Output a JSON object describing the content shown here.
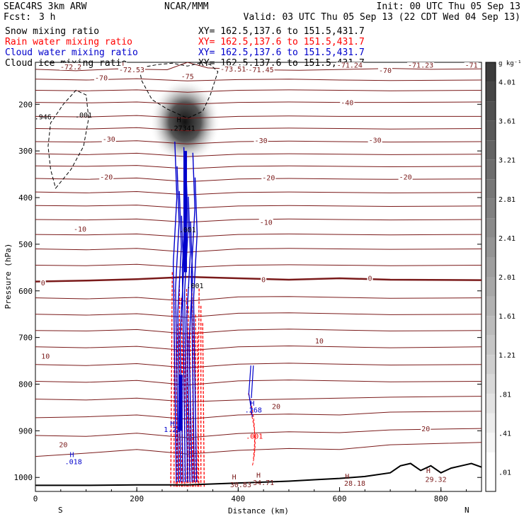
{
  "header": {
    "model": "SEAC4RS  3km ARW",
    "org": "NCAR/MMM",
    "init": "Init: 00 UTC Thu 05 Sep 13",
    "fcst_label": "Fcst:",
    "fcst_value": "3 h",
    "valid": "Valid: 03 UTC Thu 05 Sep 13 (22 CDT Wed 04 Sep 13)"
  },
  "colors": {
    "snow": "#000000",
    "rain": "#ff0000",
    "cloud_water": "#0000cc",
    "cloud_ice": "#000000",
    "temperature": "#7a1a1a",
    "terrain": "#000000"
  },
  "chart_data": {
    "type": "line",
    "ylabel": "Pressure (hPa)",
    "xlabel": "Distance (km)",
    "xlim": [
      0,
      880
    ],
    "ylim": [
      1030,
      110
    ],
    "yscale": "linear-inverted",
    "x_ticks": [
      "0",
      "200",
      "400",
      "600",
      "800"
    ],
    "y_ticks": [
      "200",
      "300",
      "400",
      "500",
      "600",
      "700",
      "800",
      "900",
      "1000"
    ],
    "x_end_labels": {
      "left": "S",
      "right": "N"
    },
    "legend": [
      {
        "name": "Snow mixing ratio",
        "xy": "XY=  162.5,137.6 to 151.5,431.7",
        "color": "#000000"
      },
      {
        "name": "Rain water mixing ratio",
        "xy": "XY=  162.5,137.6 to 151.5,431.7",
        "color": "#ff0000"
      },
      {
        "name": "Cloud water mixing ratio",
        "xy": "XY=  162.5,137.6 to 151.5,431.7",
        "color": "#0000cc"
      },
      {
        "name": "Cloud ice mixing ratio",
        "xy": "XY=  162.5,137.6 to 151.5,431.7",
        "color": "#000000"
      }
    ],
    "colorbar": {
      "unit": "g kg⁻¹",
      "levels": [
        "4.01",
        "3.61",
        "3.21",
        "2.81",
        "2.41",
        "2.01",
        "1.61",
        "1.21",
        ".81",
        ".41",
        ".01"
      ]
    },
    "temperature_isotherms": [
      {
        "x": [
          0,
          80,
          160,
          260,
          300,
          340,
          420,
          520,
          620,
          700,
          780,
          880
        ],
        "p": [
          125,
          128,
          124,
          126,
          110,
          122,
          126,
          127,
          125,
          123,
          125,
          124
        ]
      },
      {
        "x": [
          0,
          100,
          200,
          300,
          400,
          500,
          600,
          700,
          880
        ],
        "p": [
          146,
          148,
          145,
          150,
          147,
          146,
          148,
          149,
          148
        ]
      },
      {
        "x": [
          0,
          100,
          200,
          300,
          400,
          500,
          600,
          700,
          880
        ],
        "p": [
          170,
          171,
          169,
          174,
          170,
          169,
          170,
          171,
          170
        ]
      },
      {
        "x": [
          0,
          100,
          200,
          300,
          400,
          500,
          600,
          700,
          880
        ],
        "p": [
          196,
          197,
          195,
          200,
          196,
          195,
          196,
          196,
          195
        ]
      },
      {
        "x": [
          0,
          100,
          200,
          300,
          400,
          500,
          600,
          700,
          880
        ],
        "p": [
          226,
          227,
          224,
          230,
          226,
          225,
          226,
          226,
          226
        ]
      },
      {
        "x": [
          0,
          100,
          200,
          300,
          400,
          500,
          600,
          700,
          880
        ],
        "p": [
          252,
          253,
          250,
          257,
          252,
          251,
          252,
          253,
          252
        ]
      },
      {
        "x": [
          0,
          100,
          200,
          300,
          400,
          500,
          600,
          700,
          880
        ],
        "p": [
          280,
          281,
          278,
          285,
          280,
          279,
          280,
          281,
          280
        ]
      },
      {
        "x": [
          0,
          100,
          200,
          300,
          400,
          500,
          600,
          700,
          880
        ],
        "p": [
          306,
          308,
          305,
          312,
          307,
          306,
          307,
          308,
          307
        ]
      },
      {
        "x": [
          0,
          100,
          200,
          300,
          400,
          500,
          600,
          700,
          880
        ],
        "p": [
          332,
          333,
          331,
          338,
          333,
          332,
          333,
          334,
          333
        ]
      },
      {
        "x": [
          0,
          100,
          200,
          300,
          400,
          500,
          600,
          700,
          880
        ],
        "p": [
          359,
          361,
          358,
          366,
          360,
          359,
          360,
          361,
          360
        ]
      },
      {
        "x": [
          0,
          100,
          200,
          300,
          400,
          500,
          600,
          700,
          880
        ],
        "p": [
          388,
          390,
          387,
          394,
          389,
          388,
          389,
          390,
          389
        ]
      },
      {
        "x": [
          0,
          100,
          200,
          300,
          400,
          500,
          600,
          700,
          880
        ],
        "p": [
          417,
          418,
          416,
          423,
          418,
          417,
          418,
          419,
          418
        ]
      },
      {
        "x": [
          0,
          100,
          200,
          300,
          400,
          500,
          600,
          700,
          880
        ],
        "p": [
          447,
          448,
          446,
          453,
          447,
          446,
          447,
          448,
          447
        ]
      },
      {
        "x": [
          0,
          100,
          200,
          300,
          400,
          500,
          600,
          700,
          880
        ],
        "p": [
          479,
          480,
          478,
          485,
          479,
          478,
          479,
          480,
          479
        ]
      },
      {
        "x": [
          0,
          100,
          200,
          300,
          400,
          500,
          600,
          700,
          880
        ],
        "p": [
          510,
          512,
          509,
          517,
          510,
          509,
          510,
          511,
          510
        ]
      },
      {
        "x": [
          0,
          100,
          200,
          300,
          400,
          500,
          600,
          700,
          880
        ],
        "p": [
          545,
          546,
          543,
          550,
          545,
          544,
          545,
          546,
          545
        ]
      },
      {
        "x": [
          0,
          100,
          200,
          300,
          400,
          500,
          600,
          700,
          880
        ],
        "p": [
          580,
          578,
          575,
          570,
          573,
          576,
          573,
          576,
          577
        ]
      },
      {
        "x": [
          0,
          100,
          200,
          300,
          400,
          500,
          600,
          700,
          880
        ],
        "p": [
          615,
          617,
          614,
          622,
          613,
          612,
          614,
          616,
          615
        ]
      },
      {
        "x": [
          0,
          100,
          200,
          300,
          400,
          500,
          600,
          700,
          880
        ],
        "p": [
          650,
          652,
          649,
          657,
          648,
          647,
          649,
          651,
          650
        ]
      },
      {
        "x": [
          0,
          100,
          200,
          300,
          400,
          500,
          600,
          700,
          880
        ],
        "p": [
          685,
          686,
          683,
          692,
          684,
          682,
          684,
          686,
          685
        ]
      },
      {
        "x": [
          0,
          100,
          200,
          300,
          400,
          500,
          600,
          700,
          880
        ],
        "p": [
          720,
          722,
          719,
          728,
          720,
          718,
          720,
          722,
          720
        ]
      },
      {
        "x": [
          0,
          100,
          200,
          300,
          400,
          500,
          600,
          700,
          880
        ],
        "p": [
          758,
          760,
          756,
          765,
          757,
          755,
          757,
          759,
          758
        ]
      },
      {
        "x": [
          0,
          100,
          200,
          300,
          400,
          500,
          600,
          700,
          880
        ],
        "p": [
          794,
          796,
          792,
          802,
          793,
          791,
          793,
          795,
          794
        ]
      },
      {
        "x": [
          0,
          100,
          200,
          300,
          400,
          500,
          600,
          700,
          880
        ],
        "p": [
          832,
          834,
          830,
          838,
          834,
          832,
          830,
          828,
          826
        ]
      },
      {
        "x": [
          0,
          100,
          200,
          300,
          400,
          500,
          600,
          700,
          880
        ],
        "p": [
          872,
          870,
          866,
          875,
          866,
          864,
          866,
          860,
          858
        ]
      },
      {
        "x": [
          0,
          100,
          200,
          300,
          400,
          500,
          600,
          700,
          880
        ],
        "p": [
          910,
          912,
          905,
          915,
          906,
          902,
          904,
          898,
          895
        ]
      },
      {
        "x": [
          0,
          100,
          200,
          300,
          400,
          500,
          600,
          700,
          880
        ],
        "p": [
          955,
          948,
          940,
          950,
          942,
          938,
          940,
          930,
          925
        ]
      }
    ],
    "isotherm_labels": [
      {
        "text": "-72.2",
        "x": 70,
        "p": 122
      },
      {
        "text": "L",
        "x": 175,
        "p": 116
      },
      {
        "text": "-72.53",
        "x": 190,
        "p": 128
      },
      {
        "text": "-70",
        "x": 130,
        "p": 146
      },
      {
        "text": "-75",
        "x": 300,
        "p": 143
      },
      {
        "text": "-73.51",
        "x": 390,
        "p": 127
      },
      {
        "text": "-71.45",
        "x": 445,
        "p": 128
      },
      {
        "text": "-71.24",
        "x": 620,
        "p": 118
      },
      {
        "text": "-70",
        "x": 690,
        "p": 130
      },
      {
        "text": "-71.23",
        "x": 760,
        "p": 118
      },
      {
        "text": "-71",
        "x": 860,
        "p": 118
      },
      {
        "text": "-40",
        "x": 615,
        "p": 199
      },
      {
        "text": "-30",
        "x": 145,
        "p": 277
      },
      {
        "text": "-30",
        "x": 445,
        "p": 280
      },
      {
        "text": "-30",
        "x": 670,
        "p": 279
      },
      {
        "text": "-20",
        "x": 140,
        "p": 358
      },
      {
        "text": "-20",
        "x": 460,
        "p": 360
      },
      {
        "text": "-20",
        "x": 730,
        "p": 358
      },
      {
        "text": "-10",
        "x": 88,
        "p": 470
      },
      {
        "text": "-10",
        "x": 455,
        "p": 455
      },
      {
        "text": "0",
        "x": 15,
        "p": 585
      },
      {
        "text": "0",
        "x": 450,
        "p": 578
      },
      {
        "text": "0",
        "x": 660,
        "p": 575
      },
      {
        "text": "10",
        "x": 20,
        "p": 742
      },
      {
        "text": "10",
        "x": 560,
        "p": 710
      },
      {
        "text": "20",
        "x": 55,
        "p": 932
      },
      {
        "text": "20",
        "x": 475,
        "p": 850
      },
      {
        "text": "20",
        "x": 770,
        "p": 898
      }
    ],
    "field_labels": [
      {
        "text": ".946",
        "x": 15,
        "p": 228,
        "color": "#000000"
      },
      {
        "text": ".001",
        "x": 95,
        "p": 224,
        "color": "#000000"
      },
      {
        "text": "H",
        "x": 283,
        "p": 234,
        "color": "#000000"
      },
      {
        "text": ".27341",
        "x": 290,
        "p": 252,
        "color": "#000000"
      },
      {
        "text": ".001",
        "x": 300,
        "p": 470,
        "color": "#000000"
      },
      {
        "text": ".001",
        "x": 315,
        "p": 590,
        "color": "#000000"
      },
      {
        "text": "H",
        "x": 428,
        "p": 842,
        "color": "#0000cc"
      },
      {
        "text": ".268",
        "x": 430,
        "p": 856,
        "color": "#0000cc"
      },
      {
        "text": ".001",
        "x": 432,
        "p": 912,
        "color": "#ff0000"
      },
      {
        "text": "H",
        "x": 270,
        "p": 885,
        "color": "#0000cc"
      },
      {
        "text": "1.25",
        "x": 270,
        "p": 898,
        "color": "#0000cc"
      },
      {
        "text": "H",
        "x": 72,
        "p": 952,
        "color": "#0000cc"
      },
      {
        "text": ".018",
        "x": 75,
        "p": 967,
        "color": "#0000cc"
      },
      {
        "text": "H",
        "x": 392,
        "p": 1000,
        "color": "#7a1a1a"
      },
      {
        "text": "30.83",
        "x": 405,
        "p": 1016,
        "color": "#7a1a1a"
      },
      {
        "text": "H",
        "x": 440,
        "p": 996,
        "color": "#7a1a1a"
      },
      {
        "text": "34.71",
        "x": 450,
        "p": 1012,
        "color": "#7a1a1a"
      },
      {
        "text": "H",
        "x": 615,
        "p": 998,
        "color": "#7a1a1a"
      },
      {
        "text": "28.18",
        "x": 630,
        "p": 1013,
        "color": "#7a1a1a"
      },
      {
        "text": "H",
        "x": 775,
        "p": 986,
        "color": "#7a1a1a"
      },
      {
        "text": "29.32",
        "x": 790,
        "p": 1005,
        "color": "#7a1a1a"
      }
    ],
    "terrain": {
      "x": [
        0,
        100,
        200,
        300,
        400,
        500,
        550,
        600,
        650,
        700,
        720,
        740,
        760,
        780,
        800,
        820,
        840,
        860,
        880
      ],
      "p": [
        1017,
        1017,
        1016,
        1016,
        1012,
        1008,
        1005,
        1002,
        998,
        990,
        975,
        970,
        985,
        975,
        990,
        980,
        975,
        970,
        978
      ]
    },
    "snow_core": {
      "x": 295,
      "p_top": 145,
      "p_bottom": 330,
      "max": 4.0
    },
    "cloud_ice_outline": {
      "x": [
        205,
        210,
        230,
        260,
        300,
        330,
        345,
        360,
        350,
        345,
        330,
        300,
        270,
        240,
        215,
        205
      ],
      "p": [
        125,
        150,
        190,
        210,
        230,
        215,
        180,
        130,
        120,
        115,
        110,
        118,
        112,
        115,
        120,
        125
      ]
    },
    "cloud_ice_left": {
      "x": [
        40,
        70,
        95,
        105,
        100,
        80,
        55,
        30,
        25,
        30,
        40
      ],
      "p": [
        380,
        340,
        290,
        230,
        180,
        170,
        200,
        240,
        290,
        340,
        380
      ]
    },
    "rain_columns": {
      "x_min": 270,
      "x_max": 330,
      "p_top": 560,
      "p_bottom": 1020
    },
    "cloud_water_columns": {
      "x_min": 275,
      "x_max": 315,
      "p_top": 280,
      "p_bottom": 1010
    },
    "cloud_water_right": {
      "x": 425,
      "p_top": 760,
      "p_bottom": 870
    }
  }
}
